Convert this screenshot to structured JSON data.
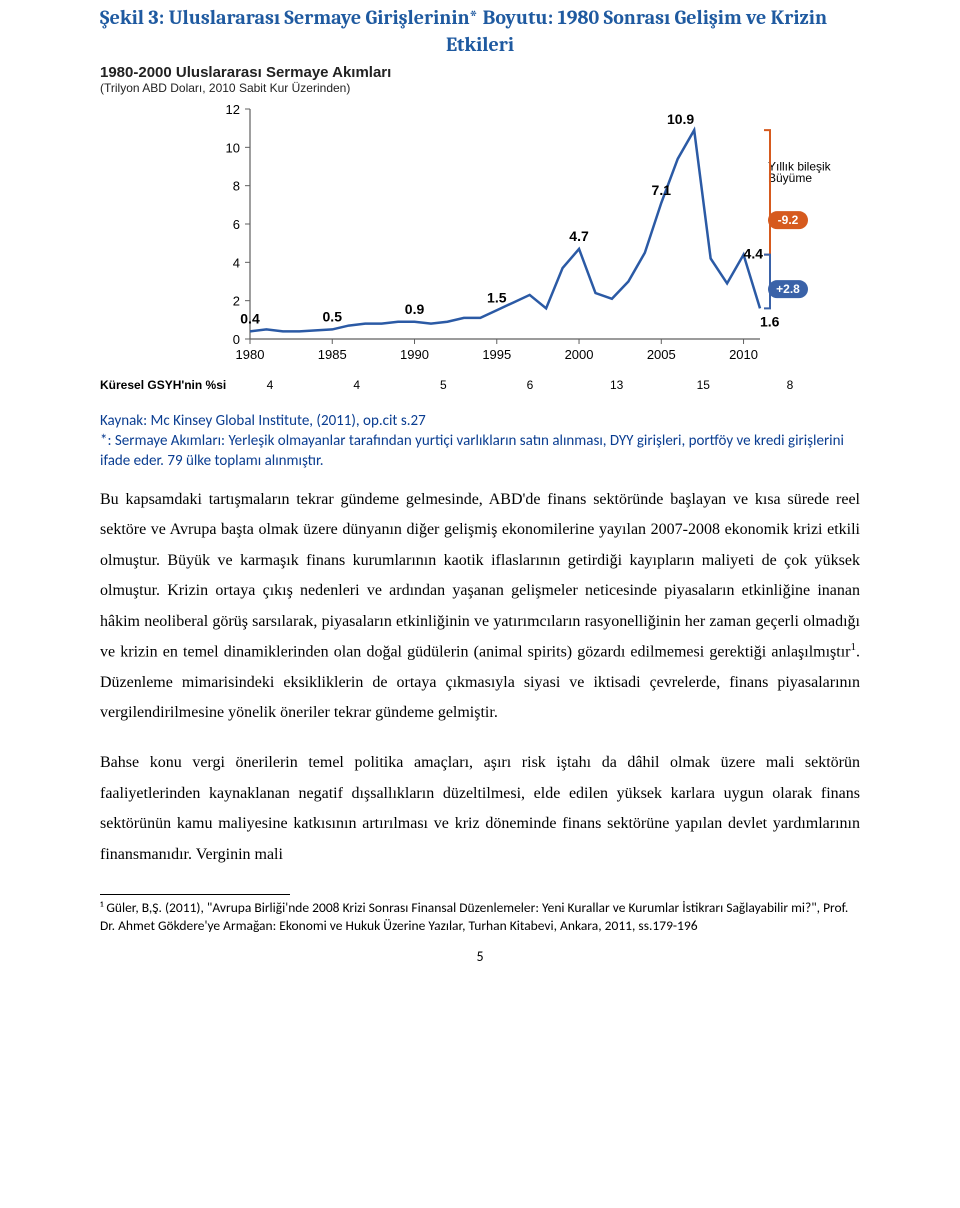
{
  "figure": {
    "title_line1": "Şekil 3:  Uluslararası Sermaye Girişlerinin* Boyutu: 1980 Sonrası Gelişim ve Krizin",
    "title_line2": "Etkileri",
    "chart_title": "1980-2000 Uluslararası Sermaye Akımları",
    "chart_subtitle": "(Trilyon ABD Doları, 2010 Sabit Kur Üzerinden)"
  },
  "chart": {
    "type": "line",
    "ylim": [
      0,
      12
    ],
    "yticks": [
      0,
      2,
      4,
      6,
      8,
      10,
      12
    ],
    "xticks": [
      1980,
      1985,
      1990,
      1995,
      2000,
      2005,
      2010
    ],
    "series": {
      "color": "#2b5aa5",
      "width": 2.5,
      "points": [
        [
          1980,
          0.4
        ],
        [
          1981,
          0.5
        ],
        [
          1982,
          0.4
        ],
        [
          1983,
          0.4
        ],
        [
          1984,
          0.45
        ],
        [
          1985,
          0.5
        ],
        [
          1986,
          0.7
        ],
        [
          1987,
          0.8
        ],
        [
          1988,
          0.8
        ],
        [
          1989,
          0.9
        ],
        [
          1990,
          0.9
        ],
        [
          1991,
          0.8
        ],
        [
          1992,
          0.9
        ],
        [
          1993,
          1.1
        ],
        [
          1994,
          1.1
        ],
        [
          1995,
          1.5
        ],
        [
          1996,
          1.9
        ],
        [
          1997,
          2.3
        ],
        [
          1998,
          1.6
        ],
        [
          1999,
          3.7
        ],
        [
          2000,
          4.7
        ],
        [
          2001,
          2.4
        ],
        [
          2002,
          2.1
        ],
        [
          2003,
          3.0
        ],
        [
          2004,
          4.5
        ],
        [
          2005,
          7.1
        ],
        [
          2006,
          9.4
        ],
        [
          2007,
          10.9
        ],
        [
          2008,
          4.2
        ],
        [
          2009,
          2.9
        ],
        [
          2010,
          4.4
        ],
        [
          2011,
          1.6
        ]
      ]
    },
    "callouts": [
      {
        "year": 1980,
        "value": 0.4,
        "label": "0.4"
      },
      {
        "year": 1985,
        "value": 0.5,
        "label": "0.5"
      },
      {
        "year": 1990,
        "value": 0.9,
        "label": "0.9"
      },
      {
        "year": 1995,
        "value": 1.5,
        "label": "1.5"
      },
      {
        "year": 2000,
        "value": 4.7,
        "label": "4.7"
      },
      {
        "year": 2005,
        "value": 7.1,
        "label": "7.1"
      },
      {
        "year": 2007,
        "value": 10.9,
        "label": "10.9"
      },
      {
        "year": 2010,
        "value": 4.4,
        "label": "4.4"
      },
      {
        "year": 2011,
        "value": 1.6,
        "label": "1.6"
      }
    ],
    "right_annotation": {
      "title": "Yıllık bileşik",
      "subtitle": "Büyüme",
      "badges": [
        {
          "text": "-9.2",
          "bg": "#d65a1e",
          "fg": "#ffffff"
        },
        {
          "text": "+2.8",
          "bg": "#3a62a8",
          "fg": "#ffffff"
        }
      ],
      "bracket_color_top": "#d65a1e",
      "bracket_color_bottom": "#3a62a8"
    },
    "axis_color": "#5f5f5f",
    "tick_font_size": 13,
    "callout_font_size": 14,
    "background": "#ffffff"
  },
  "gdp_row": {
    "label": "Küresel GSYH'nin %si",
    "values": [
      "4",
      "4",
      "5",
      "6",
      "13",
      "15",
      "8"
    ]
  },
  "source_line": "Kaynak: Mc Kinsey Global Institute, (2011), op.cit s.27",
  "note_line": "*: Sermaye Akımları: Yerleşik olmayanlar tarafından yurtiçi varlıkların satın alınması, DYY girişleri, portföy ve kredi girişlerini ifade eder. 79 ülke toplamı alınmıştır.",
  "para1": "Bu kapsamdaki tartışmaların tekrar gündeme gelmesinde, ABD'de finans sektöründe başlayan ve kısa sürede reel sektöre ve Avrupa başta olmak üzere dünyanın diğer gelişmiş ekonomilerine yayılan 2007-2008 ekonomik krizi etkili olmuştur. Büyük ve karmaşık finans kurumlarının kaotik iflaslarının getirdiği kayıpların maliyeti de çok yüksek olmuştur. Krizin ortaya çıkış nedenleri ve ardından yaşanan gelişmeler neticesinde piyasaların etkinliğine inanan hâkim neoliberal görüş sarsılarak, piyasaların etkinliğinin ve yatırımcıların rasyonelliğinin her zaman geçerli olmadığı ve krizin en temel dinamiklerinden olan doğal güdülerin (animal spirits) gözardı edilmemesi gerektiği anlaşılmıştır",
  "para1_tail": ". Düzenleme mimarisindeki eksikliklerin de ortaya çıkmasıyla siyasi ve iktisadi çevrelerde, finans piyasalarının vergilendirilmesine yönelik öneriler tekrar gündeme gelmiştir.",
  "para2": "Bahse konu vergi önerilerin temel politika amaçları, aşırı risk iştahı da dâhil olmak üzere mali sektörün faaliyetlerinden kaynaklanan negatif dışsallıkların düzeltilmesi, elde edilen yüksek karlara uygun olarak finans sektörünün kamu maliyesine katkısının artırılması ve kriz döneminde finans sektörüne yapılan devlet yardımlarının finansmanıdır. Verginin mali",
  "footnote": "¹ Güler, B,Ş. (2011), \"Avrupa Birliği'nde 2008 Krizi Sonrası Finansal Düzenlemeler: Yeni Kurallar ve Kurumlar İstikrarı Sağlayabilir mi?\", Prof. Dr. Ahmet Gökdere'ye Armağan: Ekonomi ve Hukuk Üzerine Yazılar, Turhan Kitabevi, Ankara, 2011, ss.179-196",
  "page_number": "5"
}
